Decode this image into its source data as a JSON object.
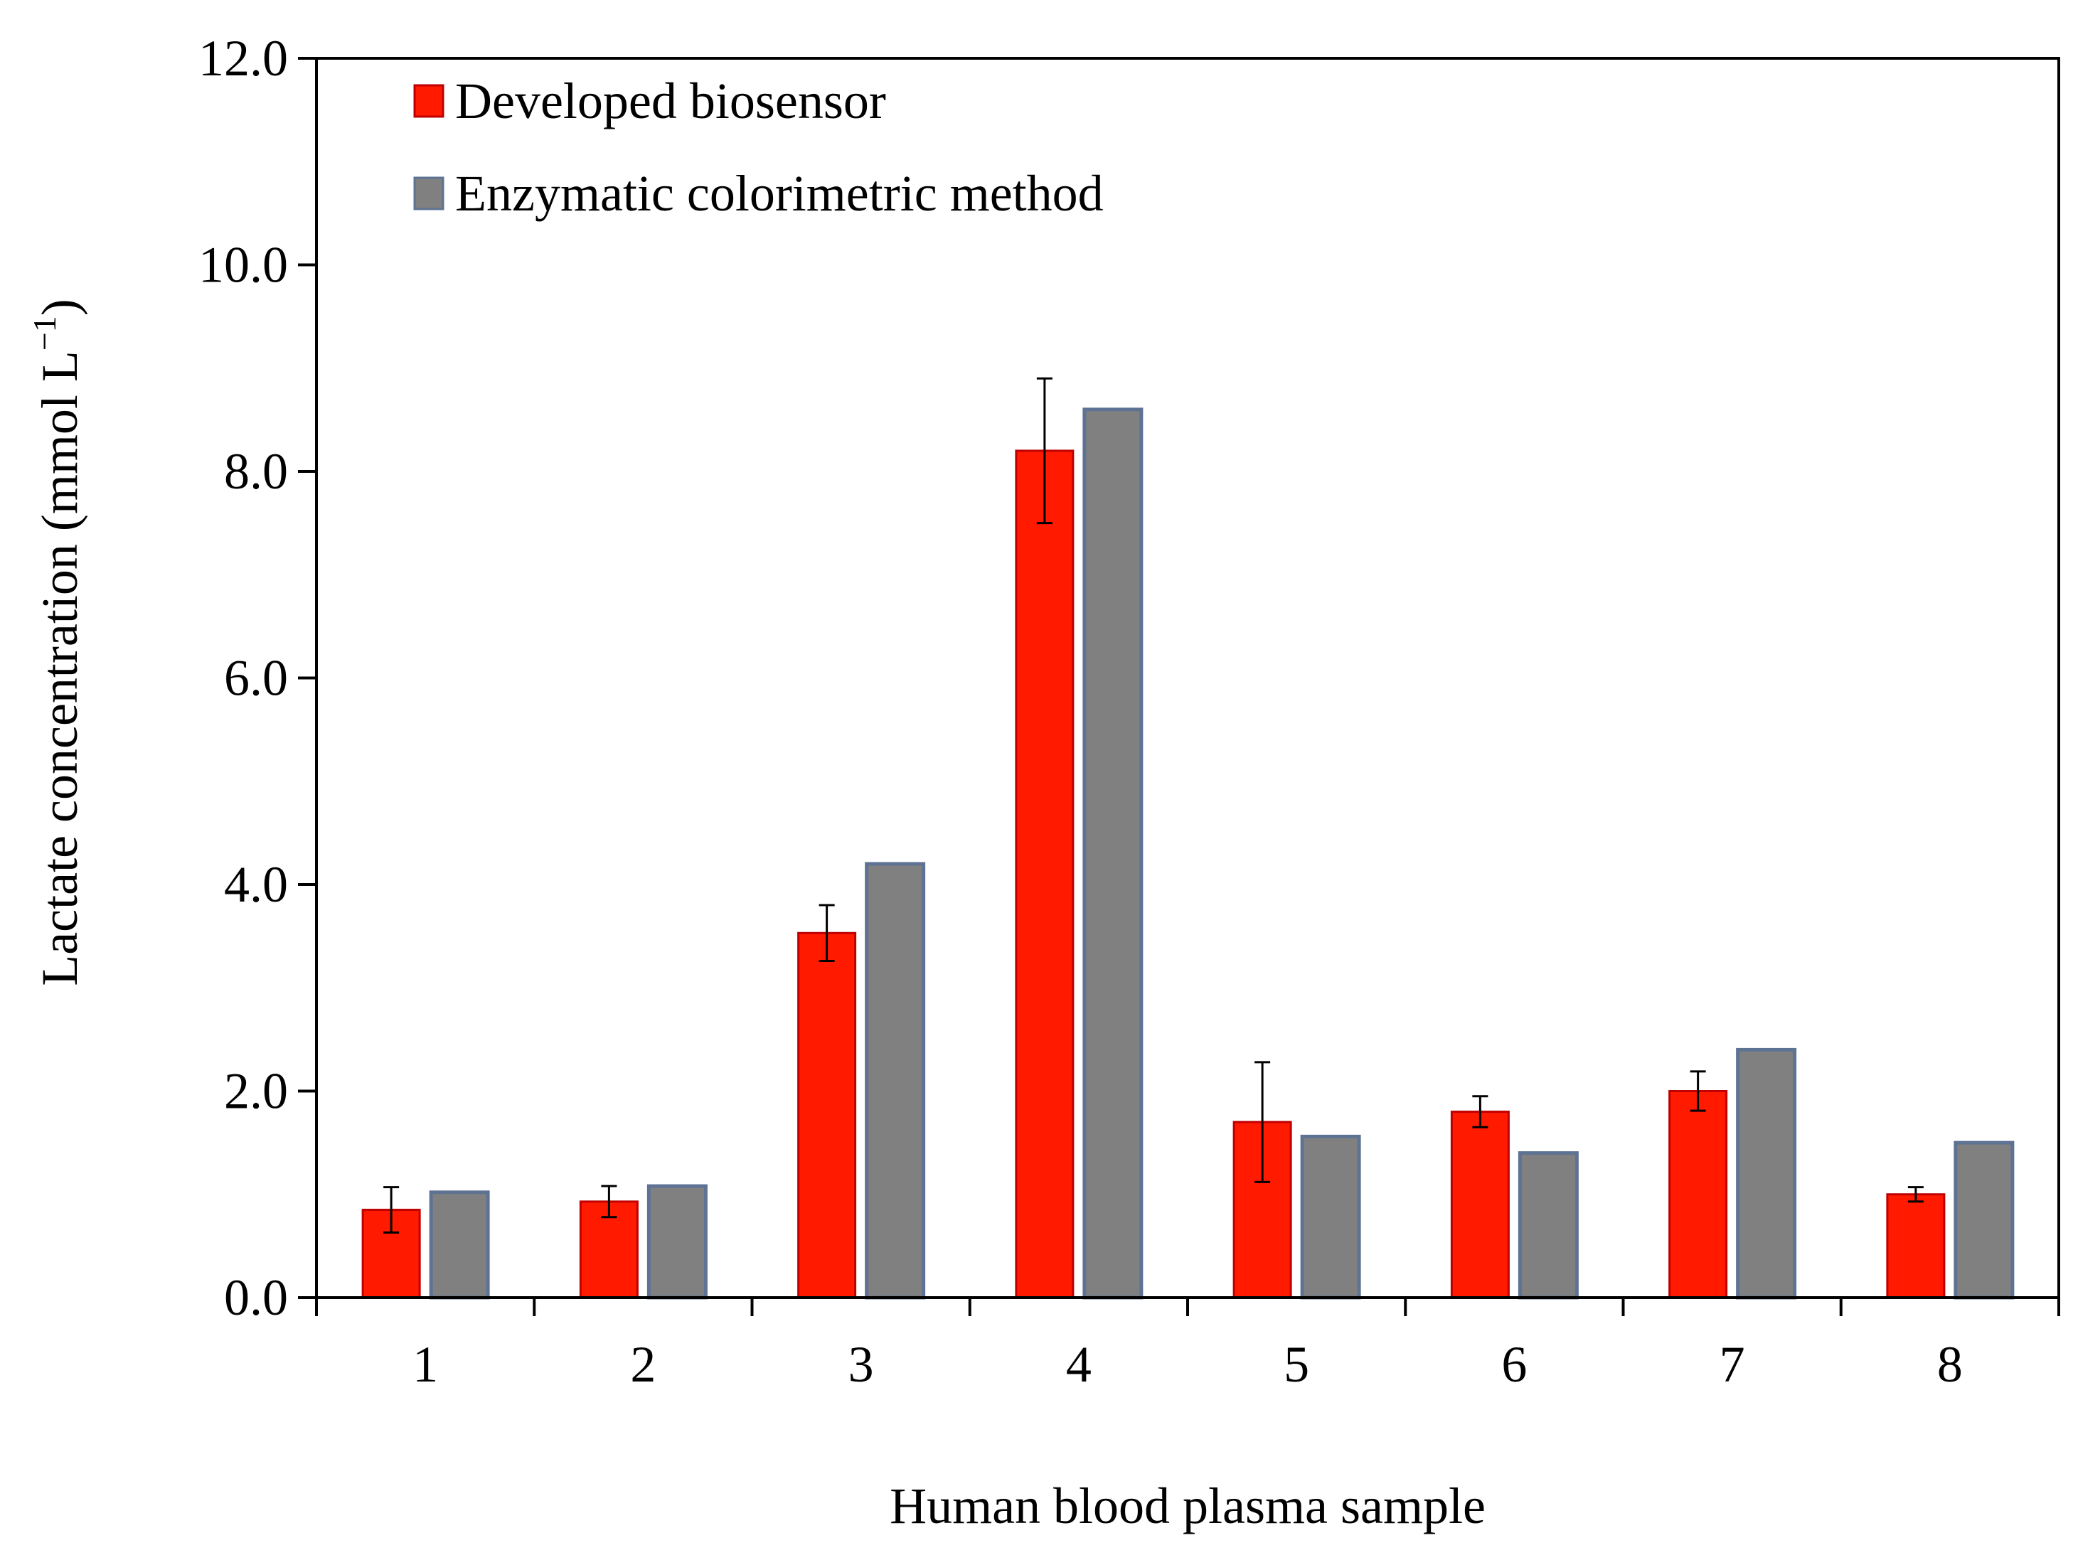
{
  "colors": {
    "developed_fill": "#ff1a00",
    "developed_stroke": "#c00000",
    "colorimetric_fill": "#808080",
    "colorimetric_stroke": "#5e7393"
  },
  "chart_data": {
    "type": "bar",
    "title": "",
    "xlabel": "Human blood plasma sample",
    "ylabel_main": "Lactate concentration (mmol L",
    "ylabel_sup": "−1",
    "ylabel_close": ")",
    "ylim": [
      0,
      12
    ],
    "yticks": [
      "0.0",
      "2.0",
      "4.0",
      "6.0",
      "8.0",
      "10.0",
      "12.0"
    ],
    "ytick_values": [
      0,
      2,
      4,
      6,
      8,
      10,
      12
    ],
    "categories": [
      "1",
      "2",
      "3",
      "4",
      "5",
      "6",
      "7",
      "8"
    ],
    "legend_position": "top-left",
    "grid": false,
    "series": [
      {
        "name": "Developed biosensor",
        "values": [
          0.85,
          0.93,
          3.53,
          8.2,
          1.7,
          1.8,
          2.0,
          1.0
        ],
        "errors": [
          0.22,
          0.15,
          0.27,
          0.7,
          0.58,
          0.15,
          0.19,
          0.07
        ]
      },
      {
        "name": "Enzymatic colorimetric method",
        "values": [
          1.02,
          1.08,
          4.2,
          8.6,
          1.56,
          1.4,
          2.4,
          1.5
        ]
      }
    ]
  }
}
